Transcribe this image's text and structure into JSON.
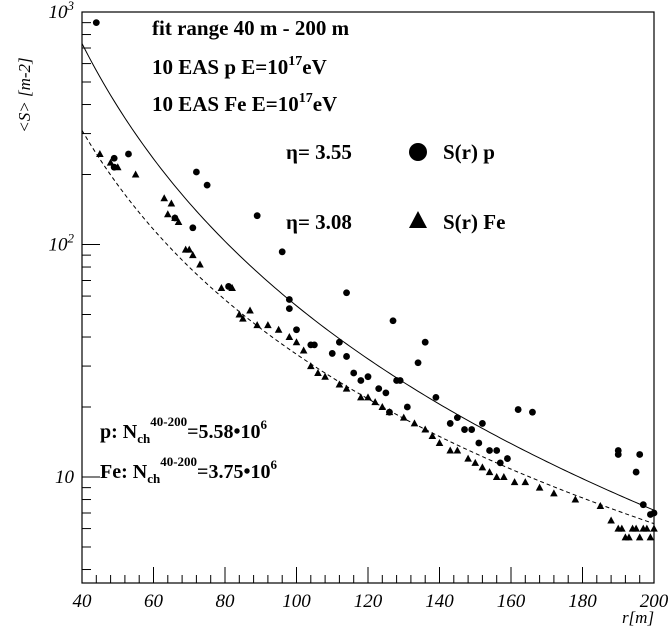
{
  "chart_data": {
    "type": "scatter",
    "title": "",
    "xlabel": "r[m]",
    "ylabel": "<S> [m-2]",
    "xlim": [
      40,
      200
    ],
    "ylim": [
      3.5,
      1000
    ],
    "yscale": "log",
    "grid": false,
    "x_ticks": [
      40,
      60,
      80,
      100,
      120,
      140,
      160,
      180,
      200
    ],
    "x_tick_labels": [
      "40",
      "60",
      "80",
      "100",
      "120",
      "140",
      "160",
      "180",
      "200"
    ],
    "y_ticks": [
      10,
      100,
      1000
    ],
    "y_tick_labels": [
      "10",
      "10^2",
      "10^3"
    ],
    "annotations": {
      "line1": "fit range 40 m - 200 m",
      "line2_prefix": "10 EAS  p  E=10",
      "line2_exp": "17",
      "line2_suffix": "eV",
      "line3_prefix": "10 EAS  Fe E=10",
      "line3_exp": "17",
      "line3_suffix": "eV",
      "eta_p_symbol": "η",
      "eta_p": "= 3.55",
      "legend_p": "S(r) p",
      "eta_fe_symbol": "η",
      "eta_fe": "= 3.08",
      "legend_fe": "S(r) Fe",
      "nch_p_label": "p:  N",
      "nch_p_sub": "ch",
      "nch_p_sup": "40-200",
      "nch_p_value": "=5.58•10",
      "nch_p_exp": "6",
      "nch_fe_label": "Fe: N",
      "nch_fe_sub": "ch",
      "nch_fe_sup": "40-200",
      "nch_fe_value": "=3.75•10",
      "nch_fe_exp": "6"
    },
    "series": [
      {
        "name": "S(r) p",
        "marker": "circle",
        "fit_style": "solid",
        "fit_eta": 3.55,
        "points": [
          [
            44,
            900
          ],
          [
            49,
            215
          ],
          [
            49,
            235
          ],
          [
            53,
            245
          ],
          [
            66,
            130
          ],
          [
            71,
            118
          ],
          [
            72,
            205
          ],
          [
            75,
            180
          ],
          [
            81,
            66
          ],
          [
            89,
            133
          ],
          [
            96,
            93
          ],
          [
            98,
            58
          ],
          [
            98,
            53
          ],
          [
            100,
            43
          ],
          [
            104,
            37
          ],
          [
            105,
            37
          ],
          [
            110,
            34
          ],
          [
            112,
            38
          ],
          [
            114,
            62
          ],
          [
            114,
            33
          ],
          [
            116,
            28
          ],
          [
            118,
            26
          ],
          [
            120,
            27
          ],
          [
            123,
            24
          ],
          [
            125,
            23
          ],
          [
            126,
            19
          ],
          [
            127,
            47
          ],
          [
            128,
            26
          ],
          [
            129,
            26
          ],
          [
            131,
            20
          ],
          [
            134,
            31
          ],
          [
            136,
            38
          ],
          [
            139,
            22
          ],
          [
            143,
            17
          ],
          [
            145,
            18
          ],
          [
            147,
            16
          ],
          [
            149,
            16
          ],
          [
            151,
            14
          ],
          [
            152,
            17
          ],
          [
            154,
            13
          ],
          [
            156,
            13
          ],
          [
            157,
            11.5
          ],
          [
            159,
            12
          ],
          [
            162,
            19.5
          ],
          [
            166,
            19
          ],
          [
            190,
            13
          ],
          [
            190,
            12.5
          ],
          [
            195,
            10.5
          ],
          [
            196,
            12.5
          ],
          [
            197,
            7.6
          ],
          [
            199,
            6.9
          ],
          [
            200,
            7
          ]
        ]
      },
      {
        "name": "S(r) Fe",
        "marker": "triangle",
        "fit_style": "dashed",
        "fit_eta": 3.08,
        "points": [
          [
            45,
            245
          ],
          [
            48,
            225
          ],
          [
            50,
            215
          ],
          [
            55,
            200
          ],
          [
            63,
            158
          ],
          [
            64,
            135
          ],
          [
            65,
            150
          ],
          [
            66,
            130
          ],
          [
            67,
            125
          ],
          [
            69,
            95
          ],
          [
            70,
            95
          ],
          [
            71,
            90
          ],
          [
            73,
            82
          ],
          [
            79,
            65
          ],
          [
            82,
            65
          ],
          [
            84,
            50
          ],
          [
            85,
            48
          ],
          [
            87,
            52
          ],
          [
            89,
            45
          ],
          [
            92,
            45
          ],
          [
            95,
            43
          ],
          [
            98,
            40
          ],
          [
            100,
            38
          ],
          [
            102,
            35
          ],
          [
            104,
            30
          ],
          [
            106,
            28
          ],
          [
            108,
            27
          ],
          [
            112,
            25
          ],
          [
            114,
            24
          ],
          [
            118,
            22
          ],
          [
            120,
            22
          ],
          [
            122,
            21
          ],
          [
            124,
            20
          ],
          [
            126,
            19
          ],
          [
            130,
            18
          ],
          [
            133,
            17
          ],
          [
            136,
            16
          ],
          [
            138,
            15
          ],
          [
            140,
            14
          ],
          [
            143,
            13
          ],
          [
            145,
            13
          ],
          [
            148,
            12
          ],
          [
            150,
            11.5
          ],
          [
            152,
            11
          ],
          [
            154,
            10.5
          ],
          [
            156,
            10
          ],
          [
            158,
            10
          ],
          [
            161,
            9.5
          ],
          [
            164,
            9.5
          ],
          [
            168,
            9
          ],
          [
            172,
            8.5
          ],
          [
            178,
            8
          ],
          [
            185,
            7.5
          ],
          [
            188,
            6.5
          ],
          [
            190,
            6
          ],
          [
            191,
            6
          ],
          [
            192,
            5.5
          ],
          [
            193,
            5.5
          ],
          [
            194,
            6
          ],
          [
            195,
            6
          ],
          [
            196,
            5.5
          ],
          [
            197,
            6
          ],
          [
            198,
            6
          ],
          [
            199,
            5.5
          ],
          [
            200,
            6
          ]
        ]
      }
    ]
  }
}
